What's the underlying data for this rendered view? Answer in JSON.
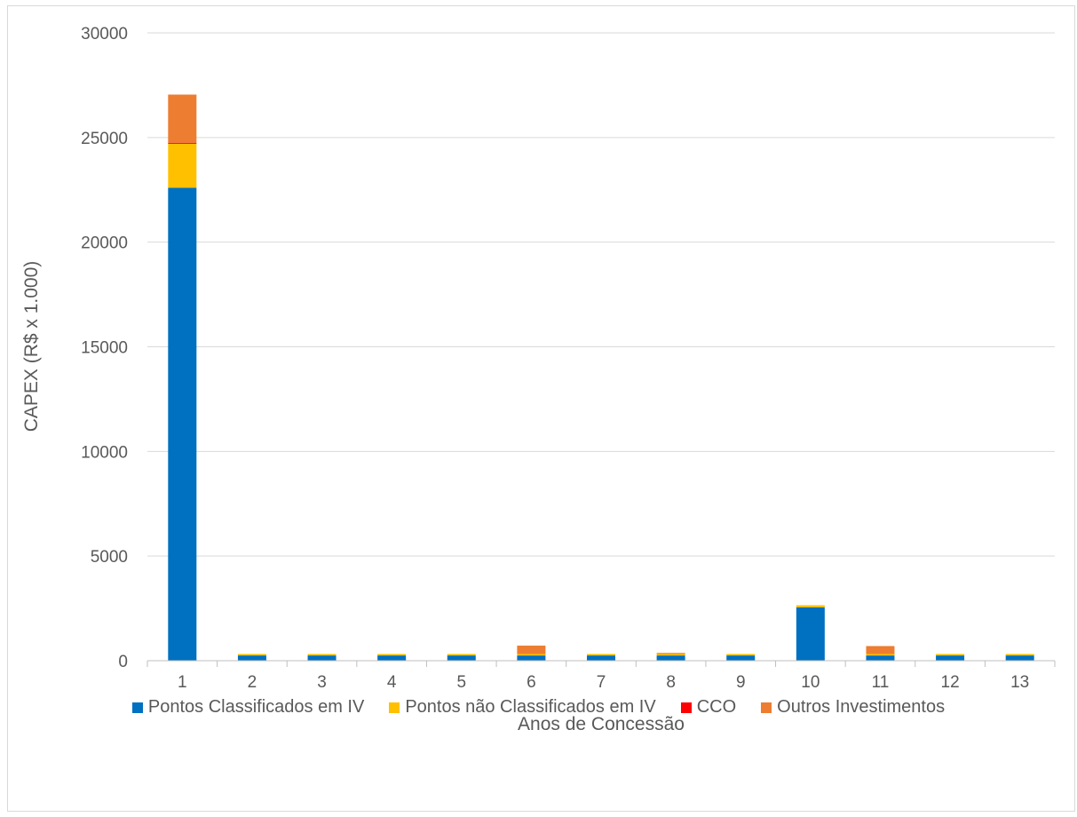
{
  "chart_data": {
    "type": "bar",
    "stacked": true,
    "xlabel": "Anos de Concessão",
    "ylabel": "CAPEX (R$ x 1.000)",
    "ylim": [
      0,
      30000
    ],
    "yticks": [
      "0",
      "5000",
      "10000",
      "15000",
      "20000",
      "25000",
      "30000"
    ],
    "categories": [
      "1",
      "2",
      "3",
      "4",
      "5",
      "6",
      "7",
      "8",
      "9",
      "10",
      "11",
      "12",
      "13"
    ],
    "grid": true,
    "legend_position": "bottom",
    "series": [
      {
        "name": "Pontos Classificados em IV",
        "color": "#0070C0",
        "values": [
          22600,
          250,
          250,
          250,
          250,
          250,
          250,
          250,
          250,
          2550,
          250,
          250,
          250
        ]
      },
      {
        "name": "Pontos não Classificados em IV",
        "color": "#FFC000",
        "values": [
          2100,
          70,
          70,
          70,
          70,
          70,
          70,
          70,
          70,
          100,
          70,
          70,
          70
        ]
      },
      {
        "name": "CCO",
        "color": "#FF0000",
        "values": [
          50,
          0,
          0,
          0,
          0,
          0,
          0,
          0,
          0,
          0,
          0,
          0,
          0
        ]
      },
      {
        "name": "Outros Investimentos",
        "color": "#ED7D31",
        "values": [
          2300,
          0,
          0,
          0,
          0,
          400,
          0,
          50,
          0,
          0,
          380,
          0,
          0
        ]
      }
    ]
  }
}
